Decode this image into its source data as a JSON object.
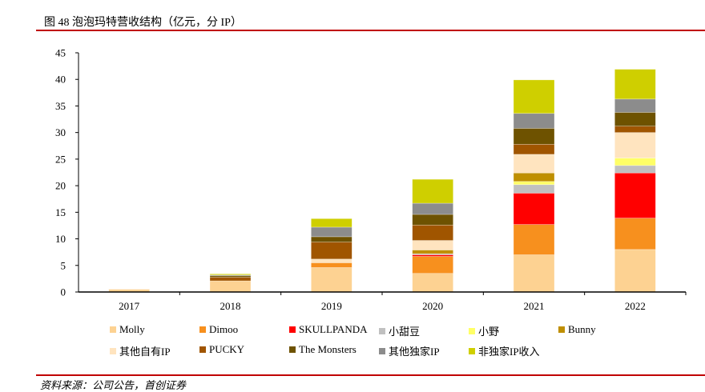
{
  "title": "图 48 泡泡玛特营收结构（亿元，分 IP）",
  "source": "资料来源：公司公告，首创证券",
  "chart_data": {
    "type": "bar",
    "stacked": true,
    "title": "泡泡玛特营收结构（亿元，分 IP）",
    "xlabel": "",
    "ylabel": "",
    "ylim": [
      0,
      45
    ],
    "yticks": [
      0,
      5,
      10,
      15,
      20,
      25,
      30,
      35,
      40,
      45
    ],
    "categories": [
      "2017",
      "2018",
      "2019",
      "2020",
      "2021",
      "2022"
    ],
    "legend_position": "bottom",
    "series": [
      {
        "name": "Molly",
        "color": "#fdd292",
        "values": [
          0.5,
          2.1,
          4.6,
          3.5,
          7.0,
          8.0
        ]
      },
      {
        "name": "Dimoo",
        "color": "#f7901e",
        "values": [
          0,
          0,
          0.9,
          3.2,
          5.7,
          5.9
        ]
      },
      {
        "name": "SKULLPANDA",
        "color": "#ff0000",
        "values": [
          0,
          0,
          0,
          0.3,
          5.9,
          8.5
        ]
      },
      {
        "name": "小甜豆",
        "color": "#c0c0c0",
        "values": [
          0,
          0,
          0,
          0.2,
          1.6,
          1.4
        ]
      },
      {
        "name": "小野",
        "color": "#ffff66",
        "values": [
          0,
          0,
          0,
          0,
          0.6,
          1.4
        ]
      },
      {
        "name": "Bunny",
        "color": "#bf8f00",
        "values": [
          0,
          0,
          0,
          0.7,
          1.6,
          0
        ]
      },
      {
        "name": "其他自有IP",
        "color": "#ffe4bf",
        "values": [
          0.1,
          0,
          0.7,
          1.8,
          3.5,
          4.8
        ]
      },
      {
        "name": "PUCKY",
        "color": "#a05500",
        "values": [
          0,
          0.7,
          3.2,
          2.9,
          1.9,
          1.2
        ]
      },
      {
        "name": "The Monsters",
        "color": "#6e5200",
        "values": [
          0,
          0.25,
          1.0,
          2.0,
          3.0,
          2.6
        ]
      },
      {
        "name": "其他独家IP",
        "color": "#8c8c8c",
        "values": [
          0,
          0.15,
          1.8,
          2.1,
          2.8,
          2.5
        ]
      },
      {
        "name": "非独家IP收入",
        "color": "#cfcf00",
        "values": [
          0,
          0.2,
          1.6,
          4.5,
          6.3,
          5.6
        ]
      }
    ]
  }
}
